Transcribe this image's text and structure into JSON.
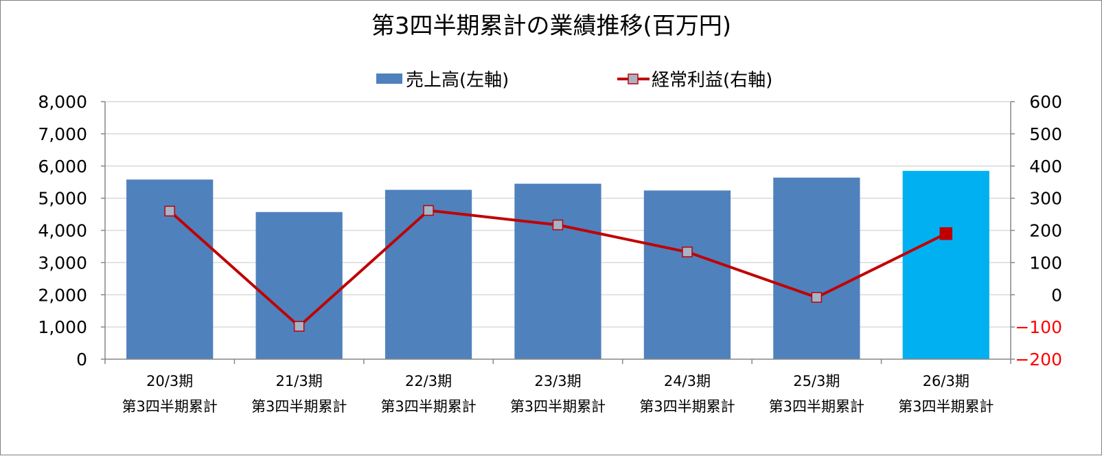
{
  "chart_data": {
    "type": "bar",
    "title": "第3四半期累計の業績推移(百万円)",
    "categories": [
      [
        "20/3期",
        "第3四半期累計"
      ],
      [
        "21/3期",
        "第3四半期累計"
      ],
      [
        "22/3期",
        "第3四半期累計"
      ],
      [
        "23/3期",
        "第3四半期累計"
      ],
      [
        "24/3期",
        "第3四半期累計"
      ],
      [
        "25/3期",
        "第3四半期累計"
      ],
      [
        "26/3期",
        "第3四半期累計"
      ]
    ],
    "series": [
      {
        "name": "売上高(左軸)",
        "type": "bar",
        "axis": "left",
        "values": [
          5580,
          4570,
          5260,
          5450,
          5240,
          5640,
          5850
        ],
        "color": "#4f81bd",
        "highlight_color": "#00b0f0",
        "highlight_index": 6
      },
      {
        "name": "経常利益(右軸)",
        "type": "line",
        "axis": "right",
        "values": [
          260,
          -98,
          262,
          217,
          133,
          -8,
          190
        ],
        "color": "#c00000",
        "marker_color": "#a6b4c8",
        "highlight_marker_color": "#c00000",
        "highlight_index": 6
      }
    ],
    "y_left": {
      "range": [
        0,
        8000
      ],
      "ticks": [
        "0",
        "1,000",
        "2,000",
        "3,000",
        "4,000",
        "5,000",
        "6,000",
        "7,000",
        "8,000"
      ]
    },
    "y_right": {
      "range": [
        -200,
        600
      ],
      "ticks": [
        "−200",
        "−100",
        "0",
        "100",
        "200",
        "300",
        "400",
        "500",
        "600"
      ],
      "negative_tick_color": "#ff0000"
    },
    "grid": true,
    "legend_position": "top"
  }
}
